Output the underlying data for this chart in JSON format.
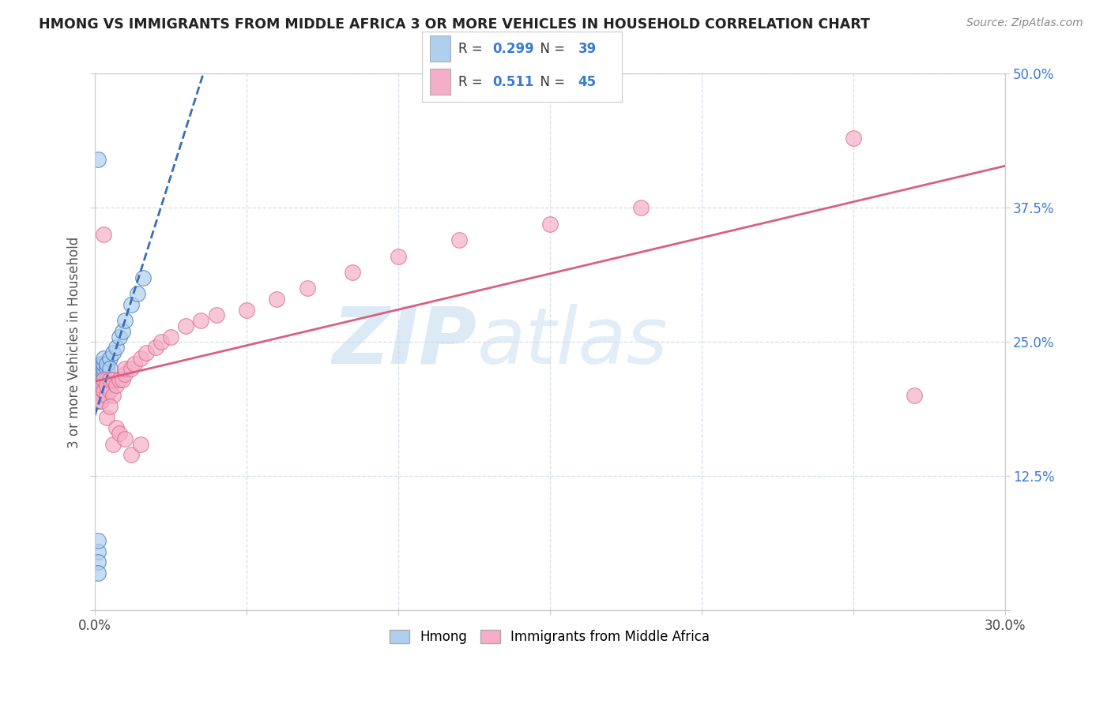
{
  "title": "HMONG VS IMMIGRANTS FROM MIDDLE AFRICA 3 OR MORE VEHICLES IN HOUSEHOLD CORRELATION CHART",
  "source": "Source: ZipAtlas.com",
  "ylabel": "3 or more Vehicles in Household",
  "xlim": [
    0.0,
    0.3
  ],
  "ylim": [
    0.0,
    0.5
  ],
  "xticks": [
    0.0,
    0.05,
    0.1,
    0.15,
    0.2,
    0.25,
    0.3
  ],
  "xticklabels_show": [
    "0.0%",
    "30.0%"
  ],
  "yticks": [
    0.0,
    0.125,
    0.25,
    0.375,
    0.5
  ],
  "yticklabels": [
    "",
    "12.5%",
    "25.0%",
    "37.5%",
    "50.0%"
  ],
  "legend_label1": "Hmong",
  "legend_label2": "Immigrants from Middle Africa",
  "R1": "0.299",
  "N1": "39",
  "R2": "0.511",
  "N2": "45",
  "color_hmong": "#aecfee",
  "color_africa": "#f5aec8",
  "trendline_hmong": "#3a6db5",
  "trendline_africa": "#d96080",
  "watermark_zip": "ZIP",
  "watermark_atlas": "atlas",
  "watermark_color": "#d0e8f8",
  "background_color": "#ffffff",
  "grid_color": "#d8dfe8",
  "tick_color": "#3a7ad4",
  "hmong_x": [
    0.001,
    0.001,
    0.001,
    0.001,
    0.001,
    0.001,
    0.001,
    0.002,
    0.002,
    0.002,
    0.002,
    0.002,
    0.002,
    0.002,
    0.002,
    0.003,
    0.003,
    0.003,
    0.003,
    0.003,
    0.003,
    0.004,
    0.004,
    0.004,
    0.005,
    0.005,
    0.006,
    0.007,
    0.008,
    0.009,
    0.01,
    0.012,
    0.014,
    0.016,
    0.001,
    0.001,
    0.001,
    0.001,
    0.001
  ],
  "hmong_y": [
    0.2,
    0.195,
    0.21,
    0.215,
    0.205,
    0.22,
    0.225,
    0.215,
    0.22,
    0.21,
    0.225,
    0.23,
    0.2,
    0.195,
    0.205,
    0.22,
    0.225,
    0.215,
    0.23,
    0.21,
    0.235,
    0.225,
    0.23,
    0.215,
    0.235,
    0.225,
    0.24,
    0.245,
    0.255,
    0.26,
    0.27,
    0.285,
    0.295,
    0.31,
    0.42,
    0.055,
    0.065,
    0.045,
    0.035
  ],
  "africa_x": [
    0.001,
    0.002,
    0.002,
    0.003,
    0.003,
    0.004,
    0.004,
    0.005,
    0.005,
    0.006,
    0.006,
    0.007,
    0.008,
    0.009,
    0.01,
    0.01,
    0.012,
    0.013,
    0.015,
    0.017,
    0.02,
    0.022,
    0.025,
    0.03,
    0.035,
    0.04,
    0.05,
    0.06,
    0.07,
    0.085,
    0.1,
    0.12,
    0.15,
    0.18,
    0.003,
    0.004,
    0.005,
    0.006,
    0.007,
    0.008,
    0.01,
    0.012,
    0.015,
    0.25,
    0.27
  ],
  "africa_y": [
    0.2,
    0.195,
    0.21,
    0.205,
    0.215,
    0.2,
    0.21,
    0.205,
    0.215,
    0.2,
    0.215,
    0.21,
    0.215,
    0.215,
    0.22,
    0.225,
    0.225,
    0.23,
    0.235,
    0.24,
    0.245,
    0.25,
    0.255,
    0.265,
    0.27,
    0.275,
    0.28,
    0.29,
    0.3,
    0.315,
    0.33,
    0.345,
    0.36,
    0.375,
    0.35,
    0.18,
    0.19,
    0.155,
    0.17,
    0.165,
    0.16,
    0.145,
    0.155,
    0.44,
    0.2
  ]
}
